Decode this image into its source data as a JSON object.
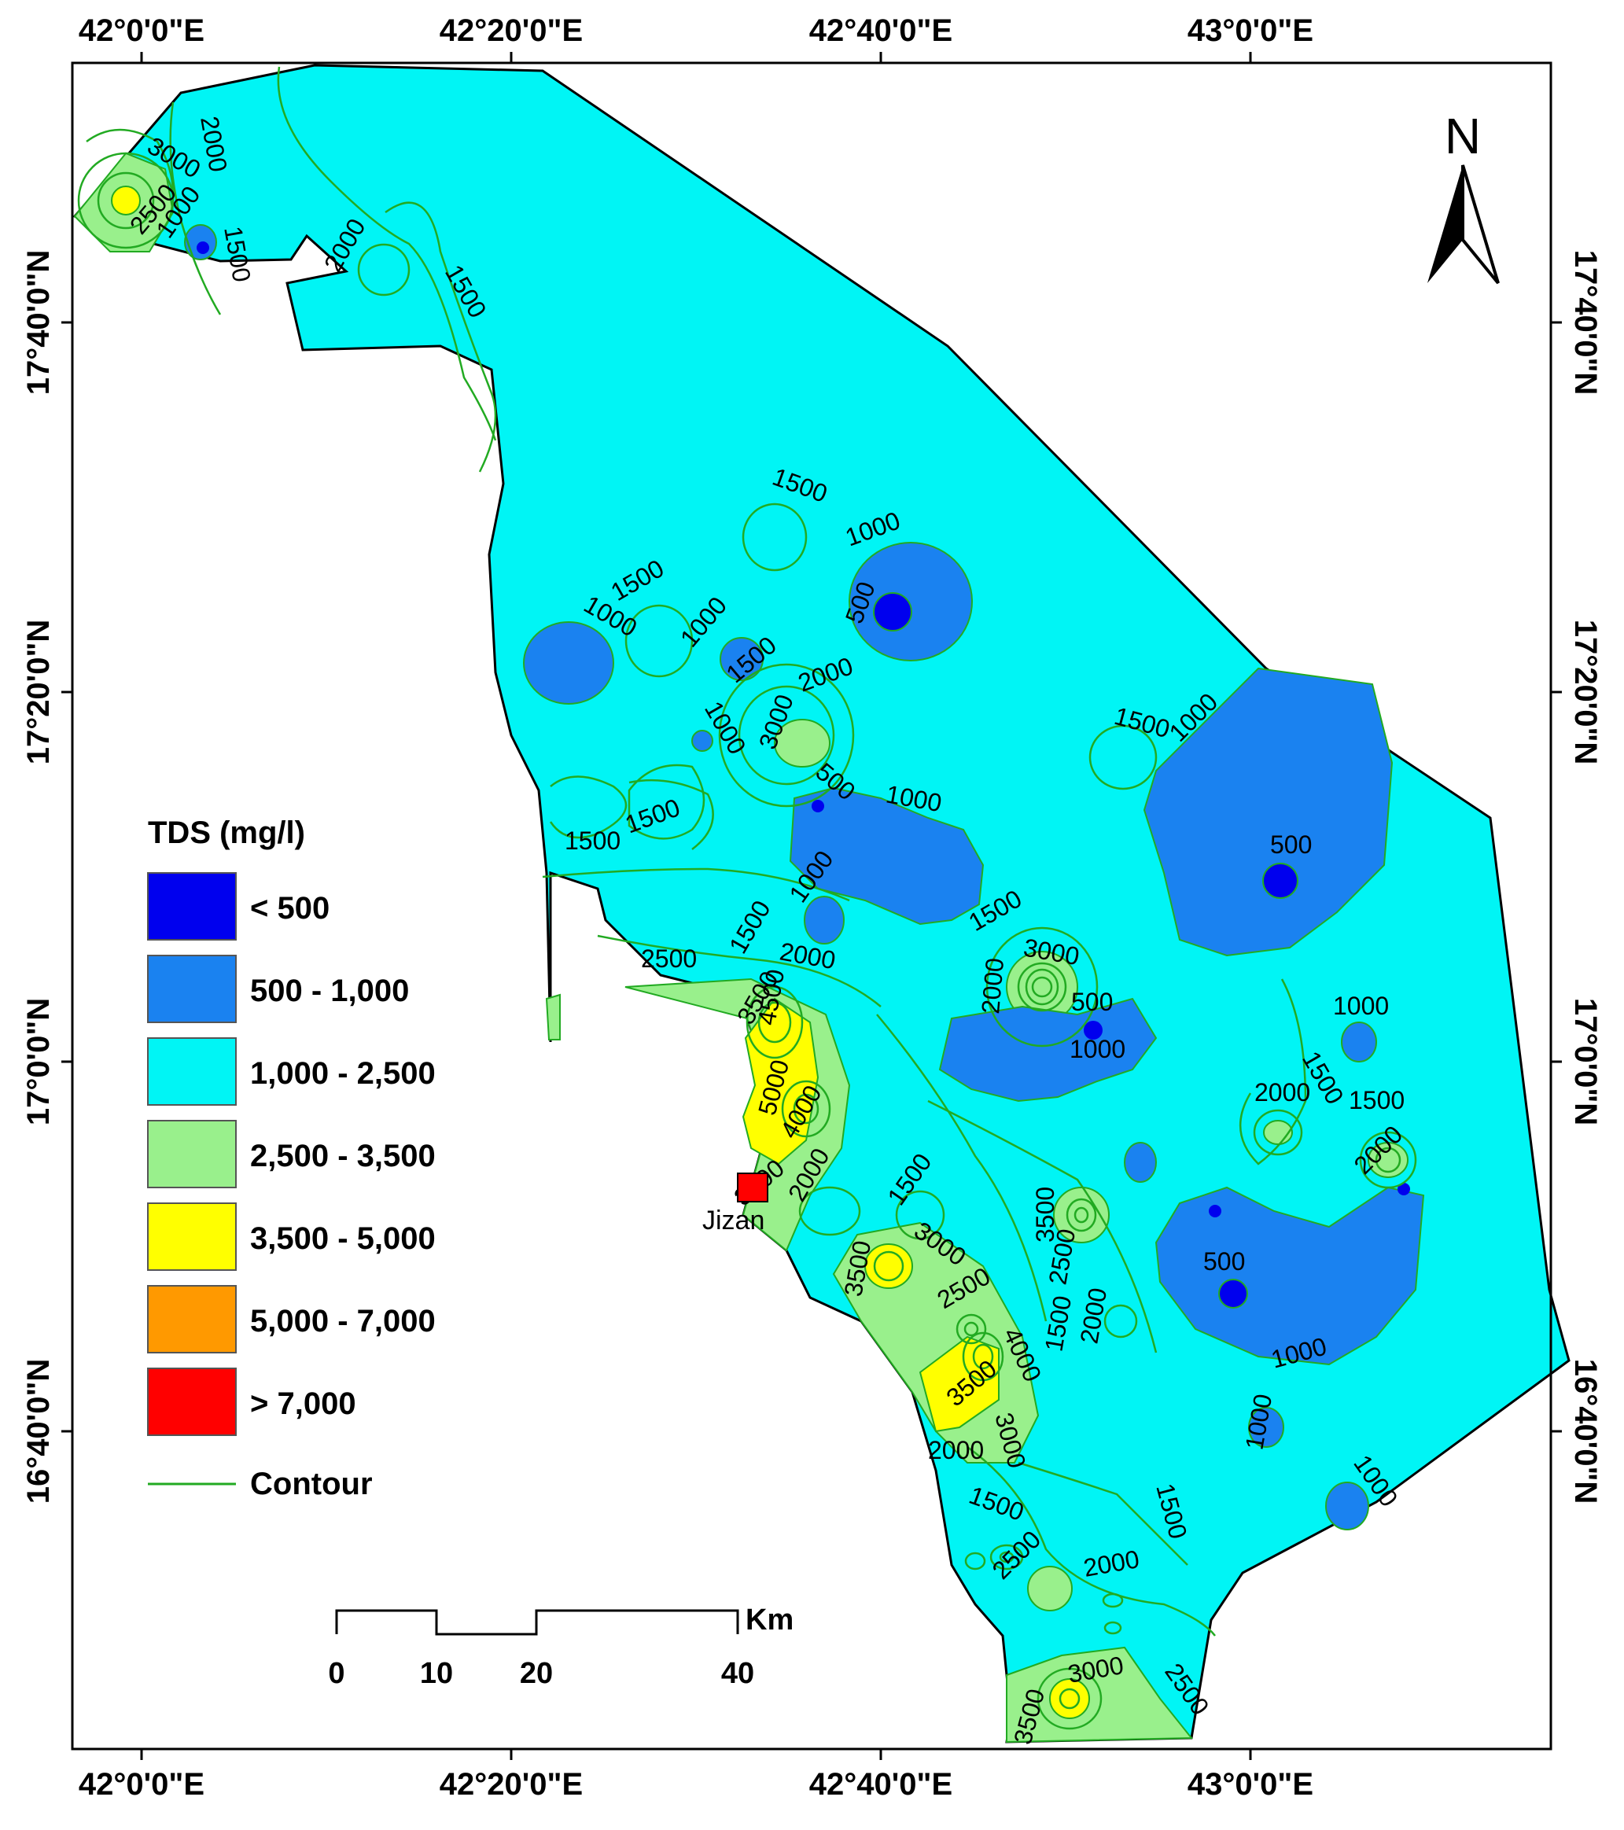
{
  "map": {
    "axis_ticks_lon": [
      "42°0'0\"E",
      "42°20'0\"E",
      "42°40'0\"E",
      "43°0'0\"E"
    ],
    "axis_ticks_lat": [
      "17°40'0\"N",
      "17°20'0\"N",
      "17°0'0\"N",
      "16°40'0\"N"
    ],
    "north_arrow_label": "N",
    "place_label": "Jizan",
    "contour_labels": [
      "500",
      "1000",
      "1500",
      "2000",
      "2500",
      "3000",
      "3500",
      "4000",
      "4500",
      "5000"
    ]
  },
  "legend": {
    "title": "TDS (mg/l)",
    "items": [
      {
        "label": "< 500",
        "color": "#0000ee"
      },
      {
        "label": "500 - 1,000",
        "color": "#1a82f0"
      },
      {
        "label": "1,000 - 2,500",
        "color": "#00f5f5"
      },
      {
        "label": "2,500 - 3,500",
        "color": "#99f08c"
      },
      {
        "label": "3,500 - 5,000",
        "color": "#ffff00"
      },
      {
        "label": "5,000 - 7,000",
        "color": "#ff9900"
      },
      {
        "label": "> 7,000",
        "color": "#ff0000"
      }
    ],
    "contour_label": "Contour",
    "contour_color": "#22aa22"
  },
  "scale_bar": {
    "unit": "Km",
    "ticks": [
      "0",
      "10",
      "20",
      "40"
    ]
  }
}
